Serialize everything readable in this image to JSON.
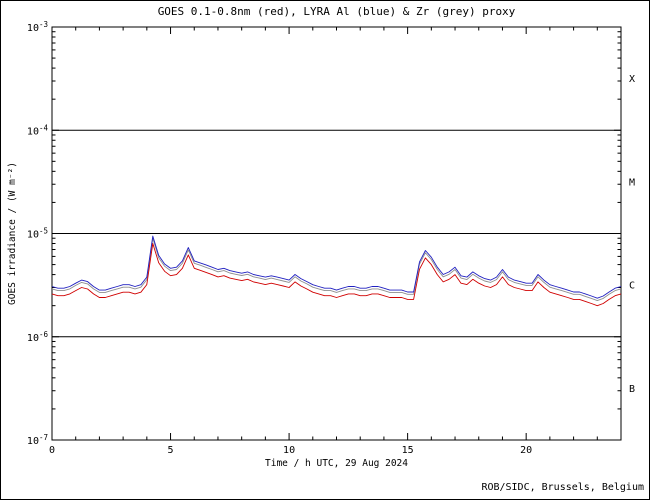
{
  "page": {
    "background": "#ffffff",
    "border_color": "#000000"
  },
  "chart_data": {
    "type": "line",
    "title": "GOES 0.1-0.8nm (red), LYRA Al (blue) & Zr (grey) proxy",
    "xlabel": "Time / h UTC, 29 Aug 2024",
    "ylabel": "GOES irradiance / (W m⁻²)",
    "credit": "ROB/SIDC, Brussels, Belgium",
    "x_units": "hours UTC",
    "y_units": "W m⁻²",
    "y_scale": "log",
    "grid": false,
    "xlim": [
      0,
      24
    ],
    "ylim": [
      1e-07,
      0.001
    ],
    "xticks_major": [
      0,
      5,
      10,
      15,
      20
    ],
    "xtick_minor_step": 1,
    "ytick_exponents": [
      -3,
      -4,
      -5,
      -6,
      -7
    ],
    "reference_lines": [
      0.0001,
      1e-05,
      1e-06
    ],
    "flare_class_labels": [
      {
        "label": "X",
        "between": [
          0.0001,
          0.001
        ]
      },
      {
        "label": "M",
        "between": [
          1e-05,
          0.0001
        ]
      },
      {
        "label": "C",
        "between": [
          1e-06,
          1e-05
        ]
      },
      {
        "label": "B",
        "between": [
          1e-07,
          1e-06
        ]
      }
    ],
    "value_scale": 1e-06,
    "x": [
      0,
      0.25,
      0.5,
      0.75,
      1,
      1.25,
      1.5,
      1.75,
      2,
      2.25,
      2.5,
      2.75,
      3,
      3.25,
      3.5,
      3.75,
      4,
      4.25,
      4.5,
      4.75,
      5,
      5.25,
      5.5,
      5.75,
      6,
      6.25,
      6.5,
      6.75,
      7,
      7.25,
      7.5,
      7.75,
      8,
      8.25,
      8.5,
      8.75,
      9,
      9.25,
      9.5,
      9.75,
      10,
      10.25,
      10.5,
      10.75,
      11,
      11.25,
      11.5,
      11.75,
      12,
      12.25,
      12.5,
      12.75,
      13,
      13.25,
      13.5,
      13.75,
      14,
      14.25,
      14.5,
      14.75,
      15,
      15.25,
      15.5,
      15.75,
      16,
      16.25,
      16.5,
      16.75,
      17,
      17.25,
      17.5,
      17.75,
      18,
      18.25,
      18.5,
      18.75,
      19,
      19.25,
      19.5,
      19.75,
      20,
      20.25,
      20.5,
      20.75,
      21,
      21.25,
      21.5,
      21.75,
      22,
      22.25,
      22.5,
      22.75,
      23,
      23.25,
      23.5,
      23.75,
      24
    ],
    "series": [
      {
        "name": "LYRA Zr proxy",
        "color": "#8f8f8f",
        "values": [
          2.91,
          2.8,
          2.8,
          2.91,
          3.14,
          3.36,
          3.25,
          2.91,
          2.69,
          2.69,
          2.8,
          2.91,
          3.02,
          3.02,
          2.91,
          3.02,
          3.58,
          8.96,
          5.82,
          4.82,
          4.37,
          4.48,
          5.15,
          6.94,
          5.15,
          4.93,
          4.7,
          4.48,
          4.26,
          4.37,
          4.14,
          4.03,
          3.92,
          4.03,
          3.81,
          3.7,
          3.58,
          3.7,
          3.58,
          3.47,
          3.36,
          3.81,
          3.47,
          3.25,
          3.02,
          2.91,
          2.8,
          2.8,
          2.69,
          2.8,
          2.91,
          2.91,
          2.8,
          2.8,
          2.91,
          2.91,
          2.8,
          2.69,
          2.69,
          2.69,
          2.58,
          2.58,
          5.04,
          6.5,
          5.6,
          4.48,
          3.81,
          4.03,
          4.48,
          3.7,
          3.58,
          4.03,
          3.7,
          3.47,
          3.36,
          3.58,
          4.26,
          3.58,
          3.36,
          3.25,
          3.14,
          3.14,
          3.81,
          3.36,
          3.02,
          2.91,
          2.8,
          2.69,
          2.58,
          2.58,
          2.46,
          2.35,
          2.24,
          2.35,
          2.58,
          2.8,
          2.91
        ]
      },
      {
        "name": "LYRA Al proxy",
        "color": "#2020c0",
        "values": [
          3.07,
          2.95,
          2.95,
          3.07,
          3.3,
          3.54,
          3.42,
          3.07,
          2.83,
          2.83,
          2.95,
          3.07,
          3.19,
          3.19,
          3.07,
          3.19,
          3.78,
          9.44,
          6.14,
          5.07,
          4.6,
          4.72,
          5.43,
          7.32,
          5.43,
          5.19,
          4.96,
          4.72,
          4.48,
          4.6,
          4.37,
          4.25,
          4.13,
          4.25,
          4.01,
          3.89,
          3.78,
          3.89,
          3.78,
          3.66,
          3.54,
          4.01,
          3.66,
          3.42,
          3.19,
          3.07,
          2.95,
          2.95,
          2.83,
          2.95,
          3.07,
          3.07,
          2.95,
          2.95,
          3.07,
          3.07,
          2.95,
          2.83,
          2.83,
          2.83,
          2.71,
          2.71,
          5.31,
          6.84,
          5.9,
          4.72,
          4.01,
          4.25,
          4.72,
          3.89,
          3.78,
          4.25,
          3.89,
          3.66,
          3.54,
          3.78,
          4.48,
          3.78,
          3.54,
          3.42,
          3.3,
          3.3,
          4.01,
          3.54,
          3.19,
          3.07,
          2.95,
          2.83,
          2.71,
          2.71,
          2.6,
          2.48,
          2.36,
          2.48,
          2.71,
          2.95,
          3.07
        ]
      },
      {
        "name": "GOES 0.1-0.8nm",
        "color": "#d00000",
        "values": [
          2.6,
          2.5,
          2.5,
          2.6,
          2.8,
          3.0,
          2.9,
          2.6,
          2.4,
          2.4,
          2.5,
          2.6,
          2.7,
          2.7,
          2.6,
          2.7,
          3.2,
          8.0,
          5.2,
          4.3,
          3.9,
          4.0,
          4.6,
          6.2,
          4.6,
          4.4,
          4.2,
          4.0,
          3.8,
          3.9,
          3.7,
          3.6,
          3.5,
          3.6,
          3.4,
          3.3,
          3.2,
          3.3,
          3.2,
          3.1,
          3.0,
          3.4,
          3.1,
          2.9,
          2.7,
          2.6,
          2.5,
          2.5,
          2.4,
          2.5,
          2.6,
          2.6,
          2.5,
          2.5,
          2.6,
          2.6,
          2.5,
          2.4,
          2.4,
          2.4,
          2.3,
          2.3,
          4.5,
          5.8,
          5.0,
          4.0,
          3.4,
          3.6,
          4.0,
          3.3,
          3.2,
          3.6,
          3.3,
          3.1,
          3.0,
          3.2,
          3.8,
          3.2,
          3.0,
          2.9,
          2.8,
          2.8,
          3.4,
          3.0,
          2.7,
          2.6,
          2.5,
          2.4,
          2.3,
          2.3,
          2.2,
          2.1,
          2.0,
          2.1,
          2.3,
          2.5,
          2.6
        ]
      }
    ]
  }
}
